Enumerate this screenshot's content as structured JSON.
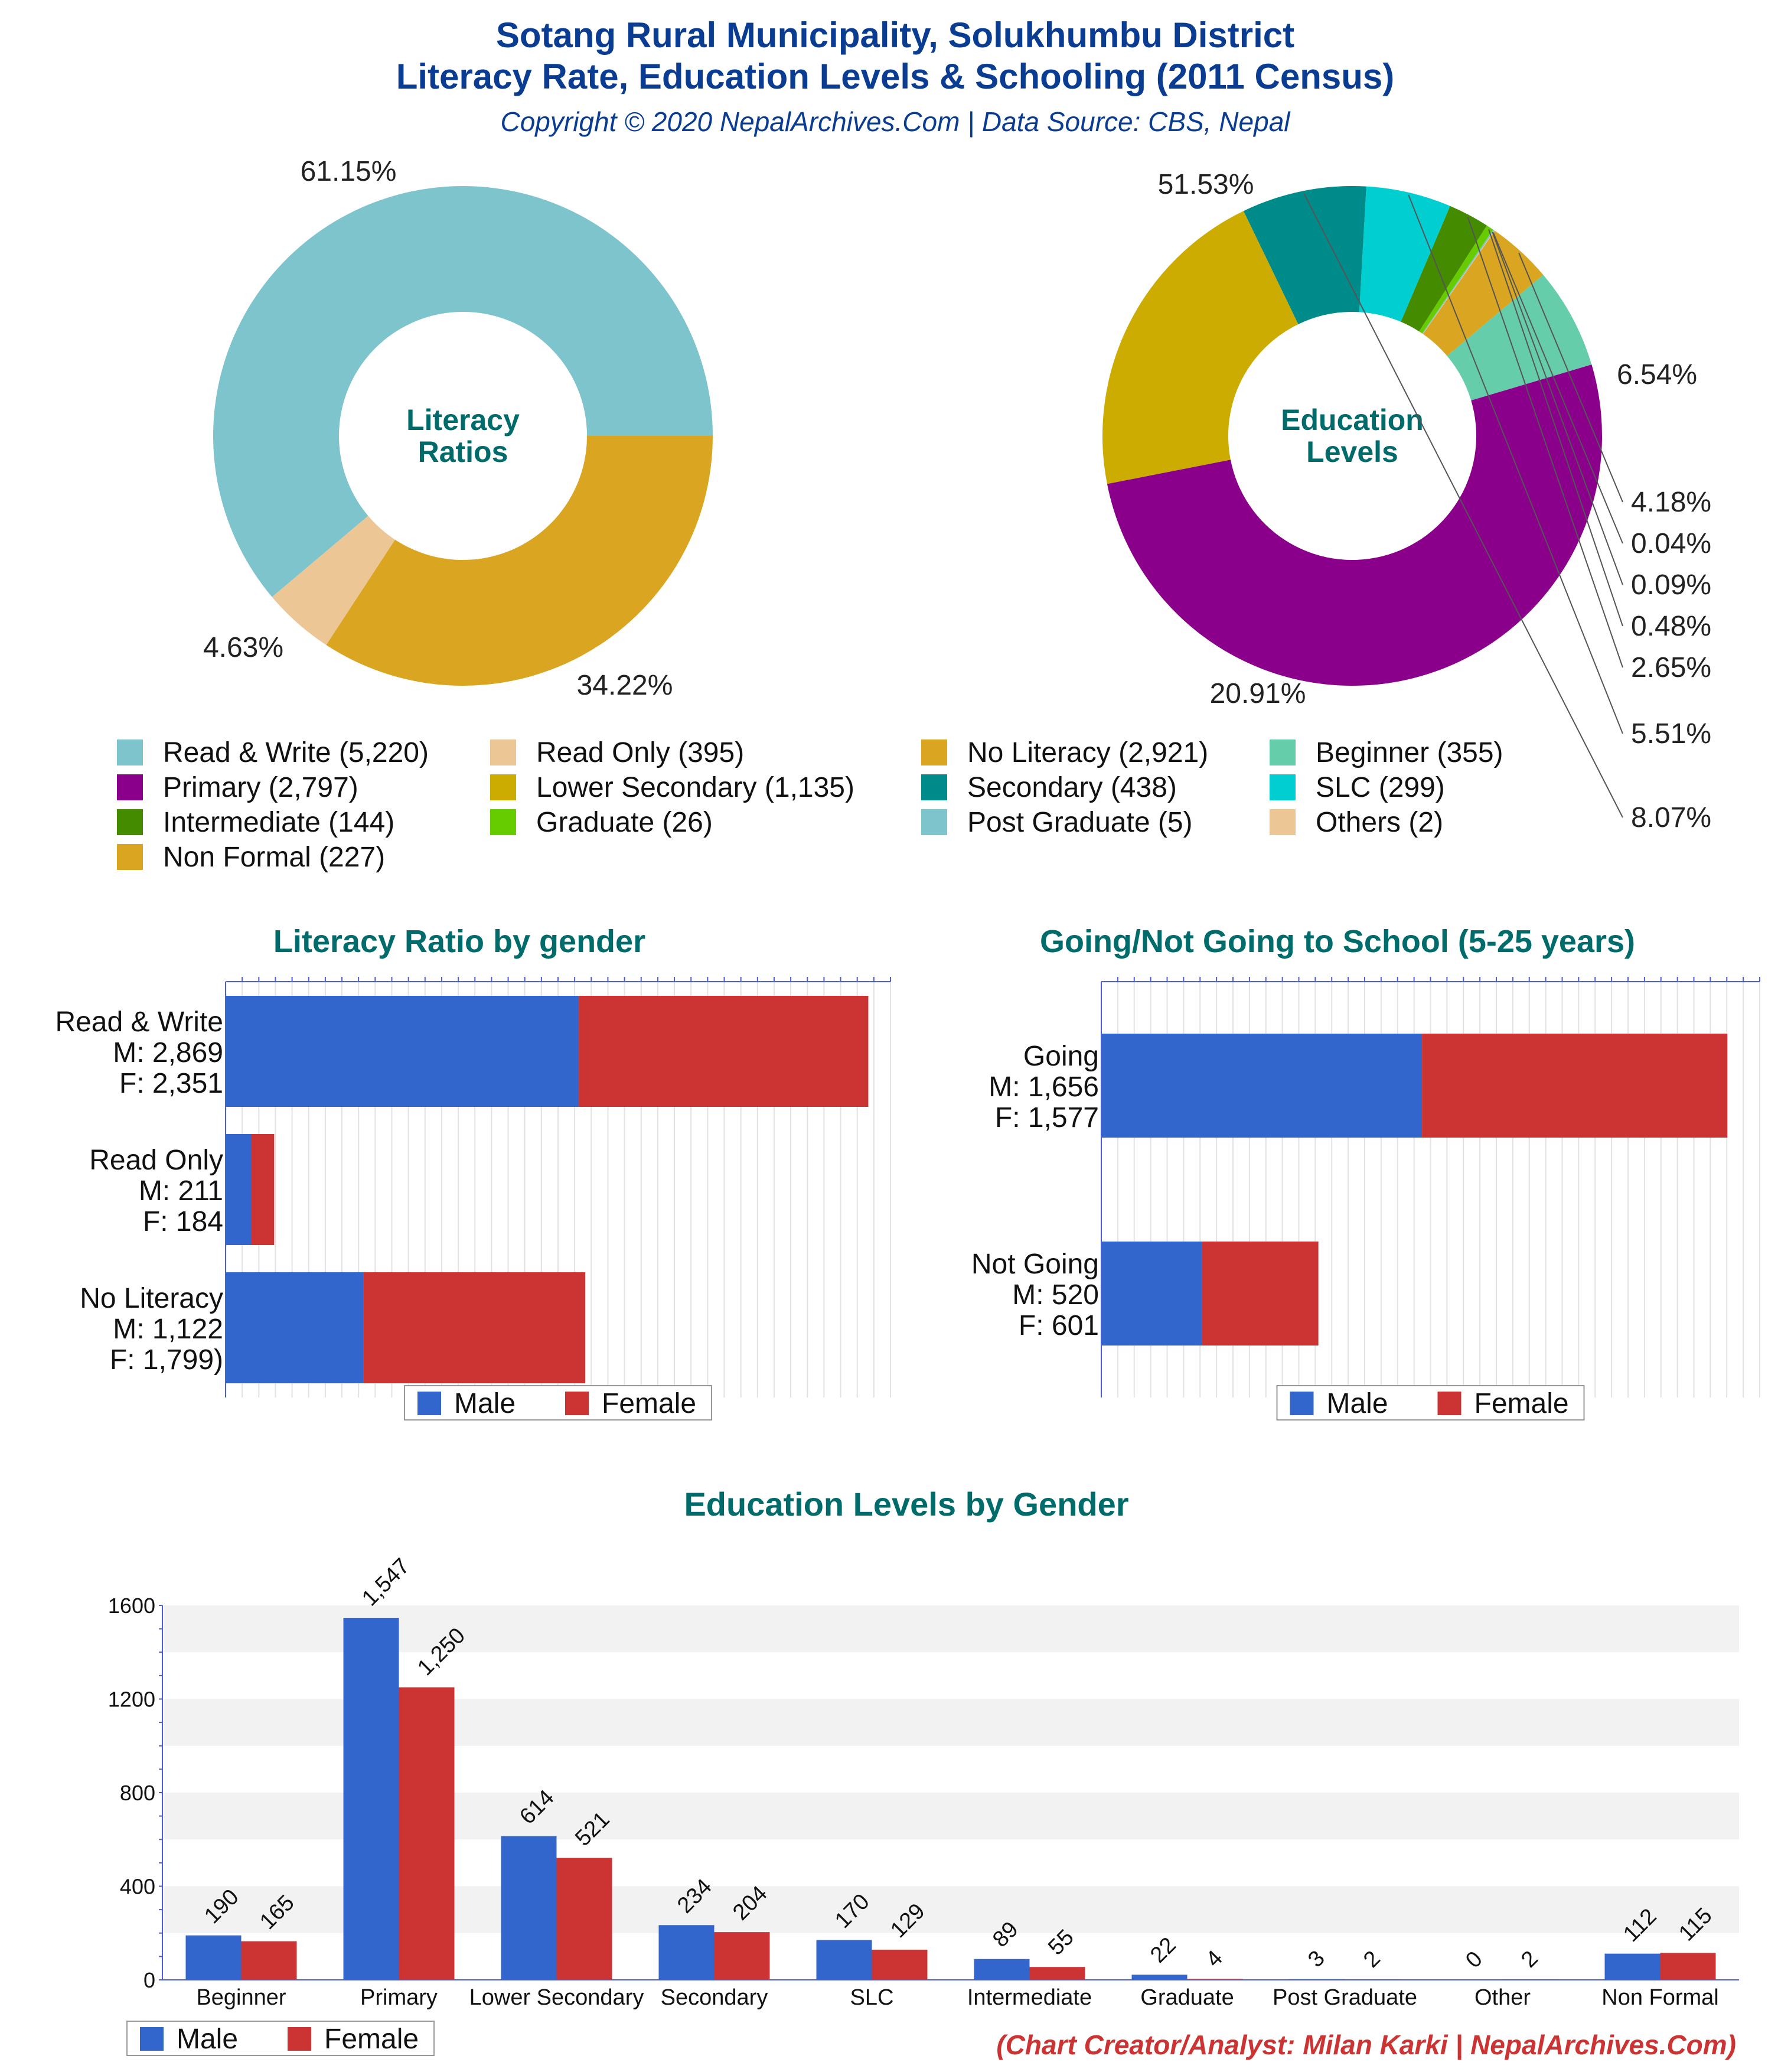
{
  "header": {
    "title_line1": "Sotang Rural Municipality, Solukhumbu District",
    "title_line2": "Literacy Rate, Education Levels & Schooling (2011 Census)",
    "copyright": "Copyright © 2020 NepalArchives.Com | Data Source: CBS, Nepal"
  },
  "footer": {
    "credit": "(Chart Creator/Analyst: Milan Karki | NepalArchives.Com)"
  },
  "colors": {
    "title": "#0a3d91",
    "heading": "#006b6b",
    "male": "#3366cc",
    "female": "#cc3333",
    "credit": "#cc3333"
  },
  "chart_data": [
    {
      "id": "literacy-donut",
      "type": "pie",
      "center_label": [
        "Literacy",
        "Ratios"
      ],
      "slices": [
        {
          "label": "Read & Write",
          "value": 5220,
          "percent_label": "61.15%",
          "color": "#7ec4cc"
        },
        {
          "label": "Read Only",
          "value": 395,
          "percent_label": "4.63%",
          "color": "#edc695"
        },
        {
          "label": "No Literacy",
          "value": 2921,
          "percent_label": "34.22%",
          "color": "#daa520"
        }
      ]
    },
    {
      "id": "education-donut",
      "type": "pie",
      "center_label": [
        "Education",
        "Levels"
      ],
      "slices": [
        {
          "label": "Beginner",
          "value": 355,
          "percent_label": "6.54%",
          "color": "#66cdaa"
        },
        {
          "label": "Non Formal",
          "value": 227,
          "percent_label": "4.18%",
          "color": "#daa520"
        },
        {
          "label": "Others",
          "value": 2,
          "percent_label": "0.04%",
          "color": "#edc695"
        },
        {
          "label": "Post Graduate",
          "value": 5,
          "percent_label": "0.09%",
          "color": "#7ec4cc"
        },
        {
          "label": "Graduate",
          "value": 26,
          "percent_label": "0.48%",
          "color": "#66cc00"
        },
        {
          "label": "Intermediate",
          "value": 144,
          "percent_label": "2.65%",
          "color": "#458b00"
        },
        {
          "label": "SLC",
          "value": 299,
          "percent_label": "5.51%",
          "color": "#00ced1"
        },
        {
          "label": "Secondary",
          "value": 438,
          "percent_label": "8.07%",
          "color": "#008b8b"
        },
        {
          "label": "Lower Secondary",
          "value": 1135,
          "percent_label": "20.91%",
          "color": "#ccac00"
        },
        {
          "label": "Primary",
          "value": 2797,
          "percent_label": "51.53%",
          "color": "#8b008b"
        }
      ]
    },
    {
      "id": "literacy-by-gender",
      "type": "bar",
      "title": "Literacy Ratio by gender",
      "orientation": "horizontal",
      "stacked": true,
      "categories": [
        {
          "name": "Read & Write",
          "m": "M: 2,869",
          "f": "F: 2,351"
        },
        {
          "name": "Read Only",
          "m": "M: 211",
          "f": "F: 184"
        },
        {
          "name": "No Literacy",
          "m": "M: 1,122",
          "f": "F: 1,799)"
        }
      ],
      "series": [
        {
          "name": "Male",
          "values": [
            2869,
            211,
            1122
          ]
        },
        {
          "name": "Female",
          "values": [
            2351,
            184,
            1799
          ]
        }
      ],
      "xlim": [
        0,
        5400
      ],
      "legend_position": "bottom"
    },
    {
      "id": "school-by-gender",
      "type": "bar",
      "title": "Going/Not Going to School (5-25 years)",
      "orientation": "horizontal",
      "stacked": true,
      "categories": [
        {
          "name": "Going",
          "m": "M: 1,656",
          "f": "F: 1,577"
        },
        {
          "name": "Not Going",
          "m": "M: 520",
          "f": "F: 601"
        }
      ],
      "series": [
        {
          "name": "Male",
          "values": [
            1656,
            520
          ]
        },
        {
          "name": "Female",
          "values": [
            1577,
            601
          ]
        }
      ],
      "xlim": [
        0,
        3400
      ],
      "legend_position": "bottom"
    },
    {
      "id": "education-by-gender",
      "type": "bar",
      "title": "Education Levels by Gender",
      "orientation": "vertical",
      "categories": [
        "Beginner",
        "Primary",
        "Lower Secondary",
        "Secondary",
        "SLC",
        "Intermediate",
        "Graduate",
        "Post Graduate",
        "Other",
        "Non Formal"
      ],
      "series": [
        {
          "name": "Male",
          "values": [
            190,
            1547,
            614,
            234,
            170,
            89,
            22,
            3,
            0,
            112
          ],
          "labels": [
            "190",
            "1,547",
            "614",
            "234",
            "170",
            "89",
            "22",
            "3",
            "0",
            "112"
          ]
        },
        {
          "name": "Female",
          "values": [
            165,
            1250,
            521,
            204,
            129,
            55,
            4,
            2,
            2,
            115
          ],
          "labels": [
            "165",
            "1,250",
            "521",
            "204",
            "129",
            "55",
            "4",
            "2",
            "2",
            "115"
          ]
        }
      ],
      "yticks": [
        "0",
        "400",
        "800",
        "1200",
        "1600"
      ],
      "ylim": [
        0,
        1600
      ],
      "grid": true,
      "legend_position": "bottom-left"
    }
  ],
  "legend_grid": [
    {
      "label": "Read & Write (5,220)",
      "color": "#7ec4cc"
    },
    {
      "label": "Read Only (395)",
      "color": "#edc695"
    },
    {
      "label": "No Literacy (2,921)",
      "color": "#daa520"
    },
    {
      "label": "Beginner (355)",
      "color": "#66cdaa"
    },
    {
      "label": "Primary (2,797)",
      "color": "#8b008b"
    },
    {
      "label": "Lower Secondary (1,135)",
      "color": "#ccac00"
    },
    {
      "label": "Secondary (438)",
      "color": "#008b8b"
    },
    {
      "label": "SLC (299)",
      "color": "#00ced1"
    },
    {
      "label": "Intermediate (144)",
      "color": "#458b00"
    },
    {
      "label": "Graduate (26)",
      "color": "#66cc00"
    },
    {
      "label": "Post Graduate (5)",
      "color": "#7ec4cc"
    },
    {
      "label": "Others (2)",
      "color": "#edc695"
    },
    {
      "label": "Non Formal (227)",
      "color": "#daa520"
    }
  ]
}
